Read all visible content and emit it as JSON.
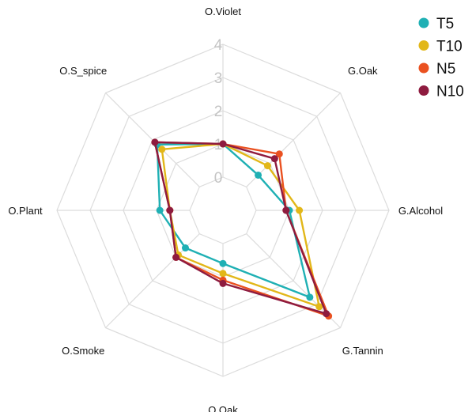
{
  "chart_data": {
    "type": "radar",
    "axes": [
      "O.Violet",
      "G.Oak",
      "G.Alcohol",
      "G.Tannin",
      "O.Oak",
      "O.Smoke",
      "O.Plant",
      "O.S_spice"
    ],
    "ticks": [
      "0",
      "1",
      "2",
      "3",
      "4"
    ],
    "rlim": [
      -1,
      4
    ],
    "grid": true,
    "legend_position": "top-right",
    "series": [
      {
        "name": "T5",
        "color": "#1fb0b4",
        "values": [
          1.0,
          0.5,
          1.0,
          2.7,
          0.6,
          0.6,
          0.9,
          1.8
        ]
      },
      {
        "name": "T10",
        "color": "#e2b719",
        "values": [
          1.0,
          0.9,
          1.3,
          3.1,
          0.9,
          0.9,
          0.6,
          1.6
        ]
      },
      {
        "name": "N5",
        "color": "#ea5120",
        "values": [
          1.0,
          1.4,
          0.9,
          3.5,
          1.1,
          1.0,
          0.6,
          1.9
        ]
      },
      {
        "name": "N10",
        "color": "#8e1b3f",
        "values": [
          1.0,
          1.2,
          0.9,
          3.4,
          1.2,
          1.0,
          0.6,
          1.9
        ]
      }
    ]
  }
}
